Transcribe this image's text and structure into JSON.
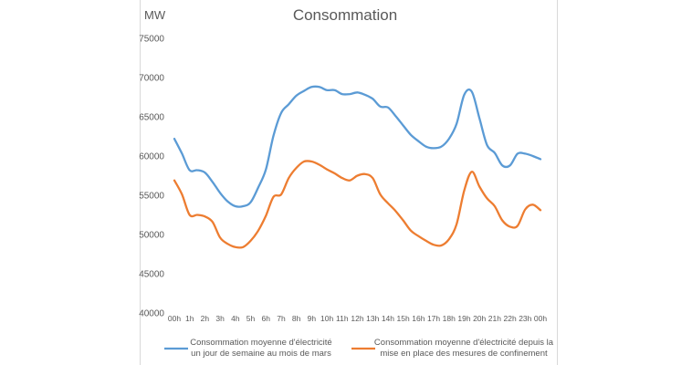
{
  "chart_data": {
    "type": "line",
    "title": "Consommation",
    "ylabel": "MW",
    "xlabel": "",
    "ylim": [
      40000,
      75000
    ],
    "yticks": [
      75000,
      70000,
      65000,
      60000,
      55000,
      50000,
      45000,
      40000
    ],
    "x_tick_labels": [
      "00h",
      "1h",
      "2h",
      "3h",
      "4h",
      "5h",
      "6h",
      "7h",
      "8h",
      "9h",
      "10h",
      "11h",
      "12h",
      "13h",
      "14h",
      "15h",
      "16h",
      "17h",
      "18h",
      "19h",
      "20h",
      "21h",
      "22h",
      "23h",
      "00h"
    ],
    "grid": false,
    "legend_position": "bottom",
    "series": [
      {
        "name_lines": [
          "Consommation moyenne d'électricité",
          "un jour de semaine au mois de mars"
        ],
        "color": "#5b9bd5",
        "x": [
          0,
          0.5,
          1,
          1.5,
          2,
          2.5,
          3,
          3.5,
          4,
          4.5,
          5,
          5.5,
          6,
          6.5,
          7,
          7.5,
          8,
          8.5,
          9,
          9.5,
          10,
          10.5,
          11,
          11.5,
          12,
          12.5,
          13,
          13.5,
          14,
          14.5,
          15,
          15.5,
          16,
          16.5,
          17,
          17.5,
          18,
          18.5,
          19,
          19.5,
          20,
          20.5,
          21,
          21.5,
          22,
          22.5,
          23,
          23.5,
          24
        ],
        "values": [
          62200,
          60300,
          58200,
          58200,
          57900,
          56700,
          55300,
          54200,
          53600,
          53600,
          54100,
          56000,
          58300,
          62600,
          65500,
          66600,
          67700,
          68300,
          68800,
          68800,
          68400,
          68400,
          67900,
          67900,
          68100,
          67800,
          67300,
          66300,
          66200,
          65100,
          63900,
          62700,
          61900,
          61200,
          61000,
          61200,
          62200,
          64100,
          67800,
          68200,
          64800,
          61400,
          60400,
          58800,
          58800,
          60300,
          60300,
          60000,
          59600
        ]
      },
      {
        "name_lines": [
          "Consommation moyenne d'électricité depuis la",
          "mise en place des mesures de confinement"
        ],
        "color": "#ed7d31",
        "x": [
          0,
          0.5,
          1,
          1.5,
          2,
          2.5,
          3,
          3.5,
          4,
          4.5,
          5,
          5.5,
          6,
          6.5,
          7,
          7.5,
          8,
          8.5,
          9,
          9.5,
          10,
          10.5,
          11,
          11.5,
          12,
          12.5,
          13,
          13.5,
          14,
          14.5,
          15,
          15.5,
          16,
          16.5,
          17,
          17.5,
          18,
          18.5,
          19,
          19.5,
          20,
          20.5,
          21,
          21.5,
          22,
          22.5,
          23,
          23.5,
          24
        ],
        "values": [
          56900,
          55100,
          52500,
          52500,
          52300,
          51600,
          49600,
          48800,
          48400,
          48400,
          49200,
          50500,
          52400,
          54800,
          55100,
          57200,
          58500,
          59300,
          59300,
          58900,
          58300,
          57800,
          57200,
          56900,
          57500,
          57700,
          57200,
          55100,
          54000,
          53000,
          51800,
          50500,
          49800,
          49200,
          48700,
          48600,
          49400,
          51300,
          55600,
          58000,
          56100,
          54600,
          53600,
          51800,
          51000,
          51100,
          53200,
          53800,
          53100
        ]
      }
    ]
  }
}
